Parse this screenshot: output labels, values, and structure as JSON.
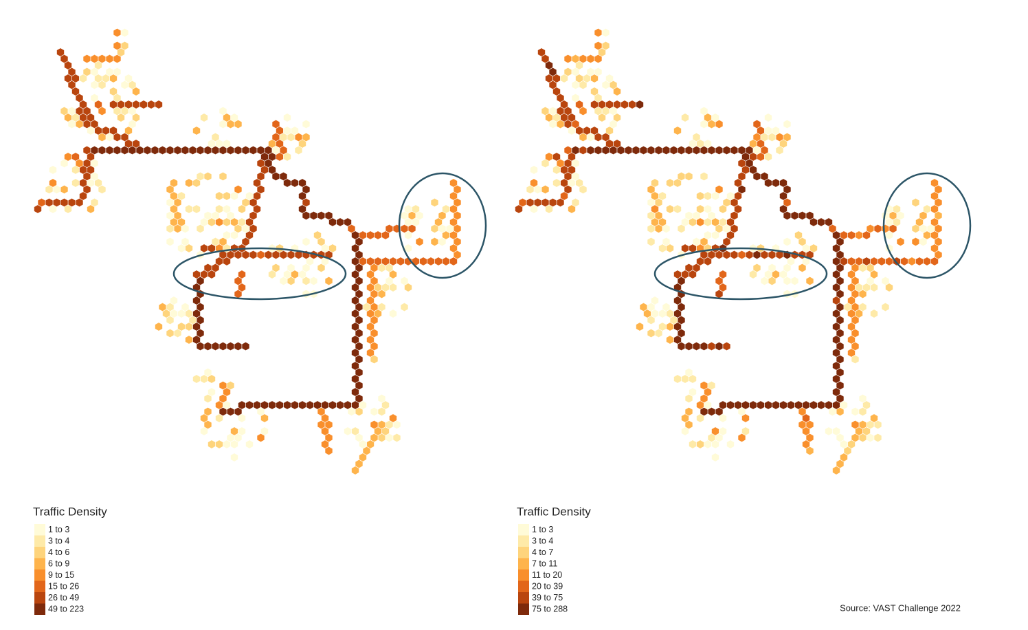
{
  "maps": [
    {
      "legend": {
        "title": "Traffic Density",
        "items": [
          {
            "label": "1 to 3",
            "color": "#fffbd8"
          },
          {
            "label": "3 to 4",
            "color": "#feeaa8"
          },
          {
            "label": "4 to 6",
            "color": "#fed47c"
          },
          {
            "label": "6 to 9",
            "color": "#feb44c"
          },
          {
            "label": "9 to 15",
            "color": "#f98f2c"
          },
          {
            "label": "15 to 26",
            "color": "#e2661a"
          },
          {
            "label": "26 to 49",
            "color": "#b9450e"
          },
          {
            "label": "49 to 223",
            "color": "#7e2a0b"
          }
        ]
      }
    },
    {
      "legend": {
        "title": "Traffic Density",
        "items": [
          {
            "label": "1 to 3",
            "color": "#fffbd8"
          },
          {
            "label": "3 to 4",
            "color": "#feeaa8"
          },
          {
            "label": "4 to 7",
            "color": "#fed47c"
          },
          {
            "label": "7 to 11",
            "color": "#feb44c"
          },
          {
            "label": "11 to 20",
            "color": "#f98f2c"
          },
          {
            "label": "20 to 39",
            "color": "#e2661a"
          },
          {
            "label": "39 to 75",
            "color": "#b9450e"
          },
          {
            "label": "75 to 288",
            "color": "#7e2a0b"
          }
        ]
      }
    }
  ],
  "source": "Source: VAST Challenge 2022"
}
